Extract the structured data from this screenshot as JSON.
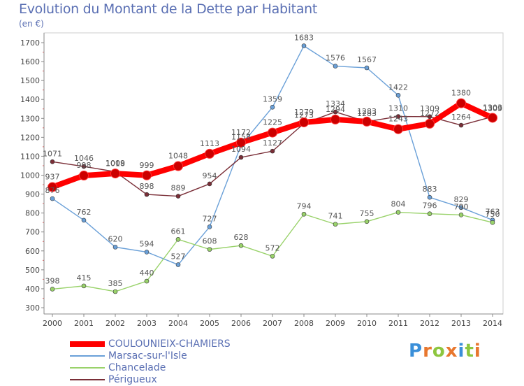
{
  "header": {
    "title": "Evolution du Montant de la Dette par Habitant",
    "unit": "(en €)"
  },
  "logo": {
    "text": "Proxiti",
    "letter_colors": [
      "#3a8fd9",
      "#e8772e",
      "#8dc63f",
      "#e8772e",
      "#3a8fd9",
      "#8dc63f",
      "#e8772e"
    ]
  },
  "chart_data": {
    "type": "line",
    "title": "Evolution du Montant de la Dette par Habitant",
    "ylabel": "(en €)",
    "xlabel": "",
    "ylim": [
      300,
      1700
    ],
    "yticks": [
      300,
      400,
      500,
      600,
      700,
      800,
      900,
      1000,
      1100,
      1200,
      1300,
      1400,
      1500,
      1600,
      1700
    ],
    "x": [
      "2000",
      "2001",
      "2002",
      "2003",
      "2004",
      "2005",
      "2006",
      "2007",
      "2008",
      "2009",
      "2010",
      "2011",
      "2012",
      "2013",
      "2014"
    ],
    "grid": false,
    "legend_position": "bottom",
    "series": [
      {
        "name": "COULOUNIEIX-CHAMIERS",
        "color": "#ff0000",
        "values": [
          937,
          998,
          1009,
          999,
          1048,
          1113,
          1172,
          1225,
          1279,
          1294,
          1283,
          1243,
          1272,
          1380,
          1303
        ]
      },
      {
        "name": "Marsac-sur-l'Isle",
        "color": "#6aa0d8",
        "values": [
          876,
          762,
          620,
          594,
          527,
          727,
          1158,
          1359,
          1683,
          1576,
          1567,
          1422,
          883,
          829,
          763
        ]
      },
      {
        "name": "Chancelade",
        "color": "#99d26a",
        "values": [
          398,
          415,
          385,
          440,
          661,
          608,
          628,
          572,
          794,
          741,
          755,
          804,
          796,
          790,
          750
        ]
      },
      {
        "name": "Périgueux",
        "color": "#7a2e37",
        "values": [
          1071,
          1046,
          1018,
          898,
          889,
          954,
          1094,
          1127,
          1273,
          1334,
          1283,
          1310,
          1309,
          1264,
          1309
        ]
      }
    ]
  }
}
